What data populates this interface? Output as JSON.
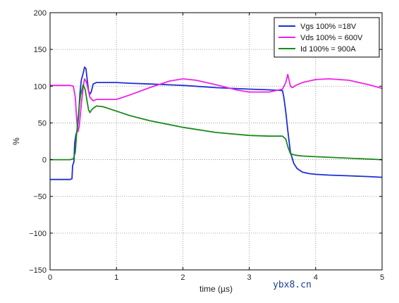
{
  "chart_data": {
    "type": "line",
    "title": "",
    "xlabel": "time (µs)",
    "ylabel": "%",
    "xlim": [
      0,
      5
    ],
    "ylim": [
      -150,
      200
    ],
    "xticks": [
      "0",
      "1",
      "2",
      "3",
      "4",
      "5"
    ],
    "yticks": [
      "200",
      "150",
      "100",
      "50",
      "0",
      "−50",
      "−100",
      "−150"
    ],
    "grid": true,
    "legend_position": "top-right",
    "series": [
      {
        "name": "Vgs 100% =18V",
        "color": "#1c2fd6",
        "x": [
          0,
          0.3,
          0.33,
          0.34,
          0.36,
          0.37,
          0.39,
          0.41,
          0.43,
          0.45,
          0.47,
          0.5,
          0.52,
          0.54,
          0.56,
          0.58,
          0.6,
          0.62,
          0.65,
          0.7,
          0.8,
          1.0,
          1.2,
          1.5,
          2.0,
          2.5,
          3.0,
          3.3,
          3.5,
          3.52,
          3.55,
          3.58,
          3.62,
          3.67,
          3.72,
          3.8,
          3.9,
          4.0,
          4.2,
          4.5,
          4.8,
          5.0
        ],
        "y": [
          -27,
          -27,
          -26,
          -8,
          -3,
          22,
          34,
          40,
          60,
          90,
          108,
          118,
          126,
          124,
          108,
          94,
          89,
          92,
          103,
          105,
          105,
          105,
          104,
          103,
          101,
          98,
          96,
          95,
          94,
          85,
          65,
          40,
          10,
          -5,
          -12,
          -17,
          -19,
          -20,
          -21,
          -22,
          -23,
          -24
        ]
      },
      {
        "name": "Vds 100% = 600V",
        "color": "#ee22e8",
        "x": [
          0,
          0.3,
          0.35,
          0.38,
          0.4,
          0.42,
          0.44,
          0.47,
          0.5,
          0.52,
          0.55,
          0.6,
          0.65,
          0.7,
          0.8,
          1.0,
          1.2,
          1.5,
          1.8,
          2.0,
          2.2,
          2.5,
          2.8,
          3.0,
          3.3,
          3.5,
          3.55,
          3.58,
          3.6,
          3.62,
          3.65,
          3.7,
          3.8,
          4.0,
          4.2,
          4.5,
          4.8,
          5.0
        ],
        "y": [
          101,
          101,
          100,
          85,
          55,
          38,
          45,
          75,
          100,
          110,
          105,
          85,
          80,
          82,
          82,
          82,
          88,
          98,
          107,
          110,
          108,
          102,
          95,
          92,
          92,
          96,
          105,
          116,
          108,
          100,
          98,
          101,
          105,
          109,
          110,
          108,
          102,
          97
        ]
      },
      {
        "name": "Id 100% = 900A",
        "color": "#1b8a1b",
        "x": [
          0,
          0.3,
          0.35,
          0.38,
          0.4,
          0.43,
          0.46,
          0.5,
          0.53,
          0.56,
          0.58,
          0.6,
          0.62,
          0.65,
          0.7,
          0.8,
          1.0,
          1.2,
          1.5,
          2.0,
          2.5,
          3.0,
          3.3,
          3.5,
          3.55,
          3.58,
          3.62,
          3.7,
          3.8,
          4.0,
          4.5,
          5.0
        ],
        "y": [
          0,
          0,
          1,
          10,
          35,
          65,
          88,
          102,
          95,
          78,
          68,
          64,
          67,
          70,
          73,
          72,
          66,
          60,
          53,
          44,
          37,
          33,
          32,
          32,
          28,
          18,
          8,
          6,
          5,
          4,
          2,
          0
        ]
      }
    ]
  },
  "watermark": "ybx8.cn"
}
